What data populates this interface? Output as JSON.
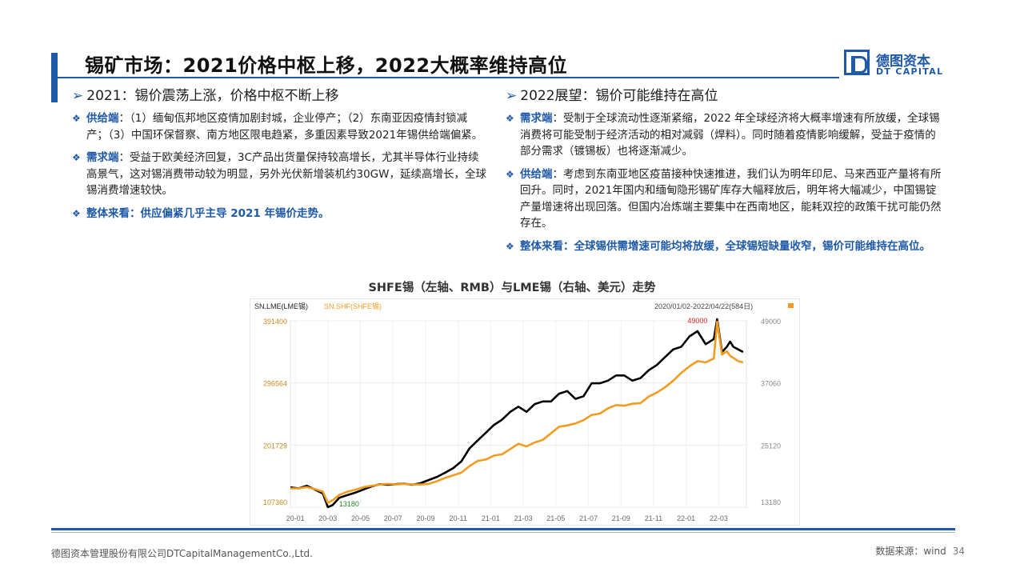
{
  "header": {
    "title": "锡矿市场：2021价格中枢上移，2022大概率维持高位",
    "logo_cn": "德图资本",
    "logo_en": "DT CAPITAL"
  },
  "left": {
    "heading": "2021：锡价震荡上涨，价格中枢不断上移",
    "b1_label": "供给端",
    "b1_text": "：（1）缅甸佤邦地区疫情加剧封城，企业停产；（2）东南亚因疫情封锁减产；（3）中国环保督察、南方地区限电趋紧，多重因素导致2021年锡供给端偏紧。",
    "b2_label": "需求端",
    "b2_text": "：受益于欧美经济回复，3C产品出货量保持较高增长，尤其半导体行业持续高景气，这对锡消费带动较为明显，另外光伏新增装机约30GW，延续高增长，全球锡消费增速较快。",
    "b3_text": "整体来看：供应偏紧几乎主导 2021 年锡价走势。"
  },
  "right": {
    "heading": "2022展望：锡价可能维持在高位",
    "b1_label": "需求端",
    "b1_text": "：受制于全球流动性逐渐紧缩，2022 年全球经济将大概率增速有所放缓，全球锡消费将可能受制于经济活动的相对减弱（焊料）。同时随着疫情影响缓解，受益于疫情的部分需求（镀锡板）也将逐渐减少。",
    "b2_label": "供给端",
    "b2_text": "：考虑到东南亚地区疫苗接种快速推进，我们认为明年印尼、马来西亚产量将有所回升。同时，2021年国内和缅甸隐形锡矿库存大幅释放后，明年将大幅减少，中国锡锭产量增速将出现回落。但国内冶炼端主要集中在西南地区，能耗双控的政策干扰可能仍然存在。",
    "b3_text": "整体来看：全球锡供需增速可能均将放缓，全球锡短缺量收窄，锡价可能维持在高位。"
  },
  "chart_caption": "SHFE锡（左轴、RMB）与LME锡（右轴、美元）走势",
  "chart_data": {
    "type": "line",
    "legend_lme": "SN.LME(LME锡)",
    "legend_shf": "SN.SHF(SHFE锡)",
    "range_text": "2020/01/02-2022/04/22(584日)",
    "y_left_ticks": [
      "391400",
      "296564",
      "201729",
      "107360"
    ],
    "y_right_ticks": [
      "49000",
      "37060",
      "25120",
      "13180"
    ],
    "ylim_left": [
      107360,
      391400
    ],
    "ylim_right": [
      13180,
      49000
    ],
    "x_ticks": [
      "20-01",
      "20-03",
      "20-05",
      "20-07",
      "20-09",
      "20-11",
      "21-01",
      "21-03",
      "21-05",
      "21-07",
      "21-09",
      "21-11",
      "22-01",
      "22-03"
    ],
    "x": [
      0,
      0.5,
      1,
      1.5,
      2,
      2.3,
      2.6,
      3,
      3.5,
      4,
      4.5,
      5,
      5.5,
      6,
      6.5,
      7,
      7.5,
      8,
      8.5,
      9,
      9.5,
      10,
      10.5,
      11,
      11.5,
      12,
      12.5,
      13,
      13.5,
      14,
      14.5,
      15,
      15.5,
      16,
      16.5,
      17,
      17.5,
      18,
      18.5,
      19,
      19.5,
      20,
      20.5,
      21,
      21.5,
      22,
      22.5,
      23,
      23.5,
      24,
      24.5,
      25,
      25.5,
      26,
      26.2,
      26.5,
      26.8,
      27,
      27.2,
      27.5,
      27.8
    ],
    "series": [
      {
        "name": "SN.LME(LME锡)",
        "color": "#000000",
        "axis": "right",
        "values": [
          17000,
          16800,
          17300,
          16600,
          15800,
          13200,
          13600,
          15000,
          15500,
          16000,
          16600,
          17200,
          17600,
          17500,
          17600,
          17700,
          17500,
          17800,
          18400,
          19000,
          19800,
          20700,
          22000,
          24500,
          26000,
          27500,
          29000,
          30000,
          31500,
          32500,
          31500,
          33000,
          33500,
          33500,
          35000,
          35500,
          34000,
          34500,
          37000,
          37000,
          37500,
          38500,
          38500,
          37500,
          38000,
          39500,
          40500,
          42000,
          43500,
          44000,
          46000,
          47000,
          44500,
          45500,
          50000,
          43000,
          44000,
          45000,
          44000,
          43500,
          43000
        ]
      },
      {
        "name": "SN.SHF(SHFE锡)",
        "color": "#f29b1f",
        "axis": "left",
        "values": [
          136000,
          136000,
          138000,
          135000,
          131000,
          114000,
          118000,
          126000,
          131000,
          134000,
          138000,
          140000,
          142000,
          143000,
          142000,
          143000,
          142000,
          142000,
          143000,
          147000,
          152000,
          156000,
          160000,
          170000,
          178000,
          180000,
          186000,
          188000,
          196000,
          204000,
          200000,
          206000,
          210000,
          220000,
          230000,
          232000,
          235000,
          240000,
          248000,
          250000,
          258000,
          263000,
          262000,
          265000,
          266000,
          276000,
          282000,
          290000,
          300000,
          312000,
          322000,
          330000,
          328000,
          334000,
          390000,
          340000,
          345000,
          338000,
          335000,
          330000,
          328000
        ]
      }
    ],
    "annotation_peak": "49000",
    "annotation_low": "13180"
  },
  "footer": {
    "company": "德图资本管理股份有限公司DTCapitalManagementCo.,Ltd.",
    "source": "数据来源：wind",
    "page": "34"
  }
}
